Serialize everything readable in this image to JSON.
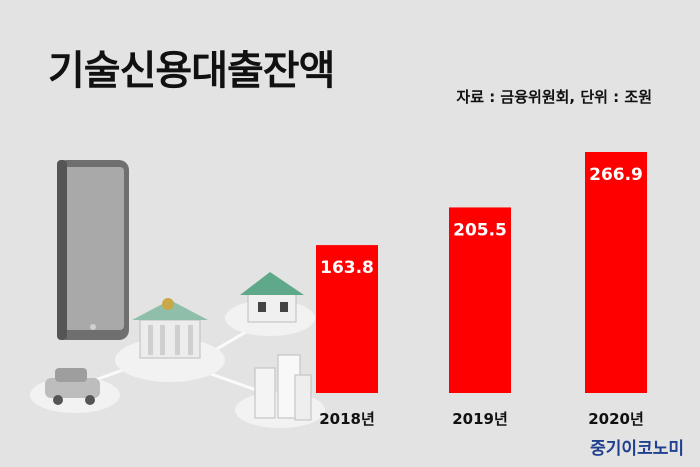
{
  "title": "기술신용대출잔액",
  "source": "자료 : 금융위원회, 단위 : 조원",
  "logo": "중기이코노미",
  "colors": {
    "bar": "#ff0000",
    "background": "#e3e3e3",
    "logo": "#1f3f8f"
  },
  "illustration": [
    "smartphone-icon",
    "bank-building-icon",
    "house-icon",
    "car-icon",
    "apartment-buildings-icon"
  ],
  "chart_data": {
    "type": "bar",
    "categories": [
      "2018년",
      "2019년",
      "2020년"
    ],
    "values": [
      163.8,
      205.5,
      266.9
    ],
    "data_labels": [
      "163.8",
      "205.5",
      "266.9"
    ],
    "ylim": [
      0,
      266.9
    ],
    "grid": false,
    "legend": "none"
  }
}
